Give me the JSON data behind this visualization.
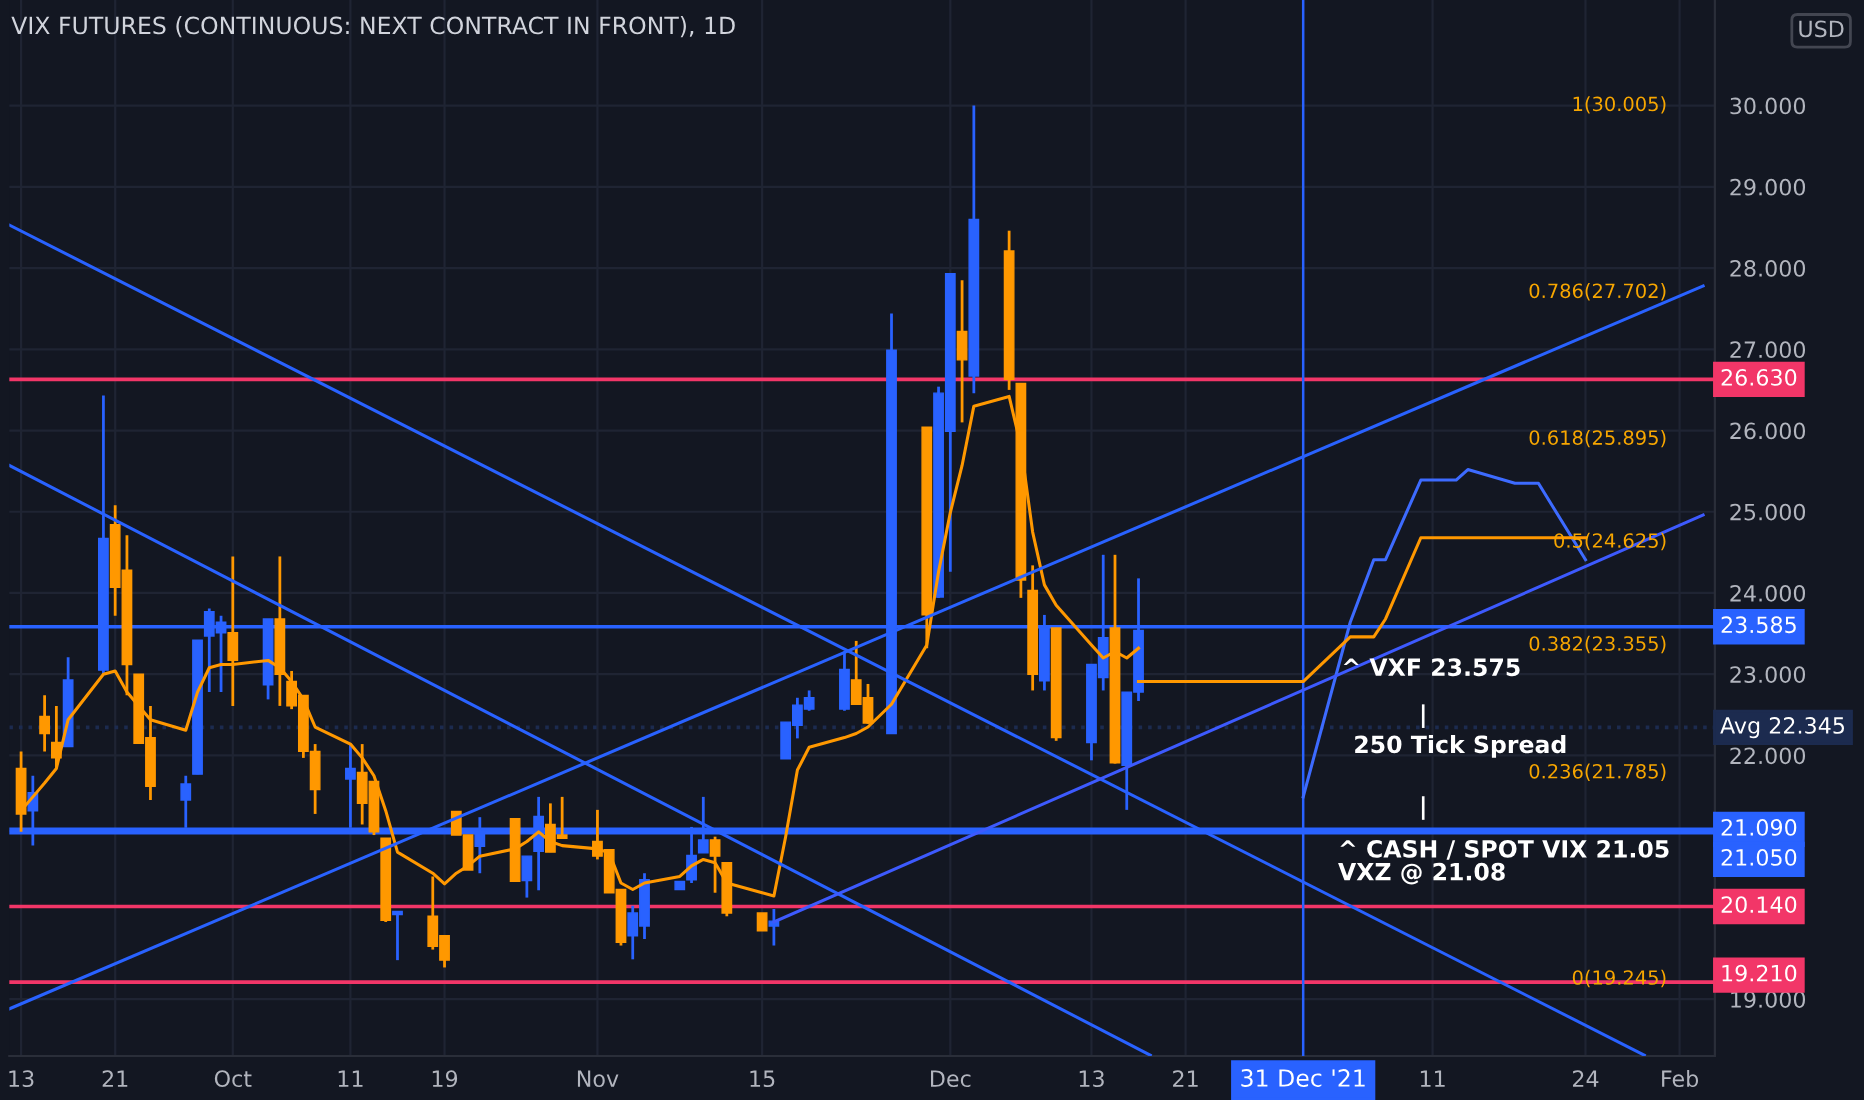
{
  "chart_data": {
    "type": "candlestick",
    "title": "VIX FUTURES (CONTINUOUS: NEXT CONTRACT IN FRONT), 1D",
    "x": [
      "2021-09-13",
      "2021-09-14",
      "2021-09-15",
      "2021-09-16",
      "2021-09-17",
      "2021-09-20",
      "2021-09-21",
      "2021-09-22",
      "2021-09-23",
      "2021-09-24",
      "2021-09-27",
      "2021-09-28",
      "2021-09-29",
      "2021-09-30",
      "2021-10-01",
      "2021-10-04",
      "2021-10-05",
      "2021-10-06",
      "2021-10-07",
      "2021-10-08",
      "2021-10-11",
      "2021-10-12",
      "2021-10-13",
      "2021-10-14",
      "2021-10-15",
      "2021-10-18",
      "2021-10-19",
      "2021-10-20",
      "2021-10-21",
      "2021-10-22",
      "2021-10-25",
      "2021-10-26",
      "2021-10-27",
      "2021-10-28",
      "2021-10-29",
      "2021-11-01",
      "2021-11-02",
      "2021-11-03",
      "2021-11-04",
      "2021-11-05",
      "2021-11-08",
      "2021-11-09",
      "2021-11-10",
      "2021-11-11",
      "2021-11-12",
      "2021-11-15",
      "2021-11-16",
      "2021-11-17",
      "2021-11-18",
      "2021-11-19",
      "2021-11-22",
      "2021-11-23",
      "2021-11-24",
      "2021-11-26",
      "2021-11-29",
      "2021-11-30",
      "2021-12-01",
      "2021-12-02",
      "2021-12-03",
      "2021-12-06",
      "2021-12-07",
      "2021-12-08",
      "2021-12-09",
      "2021-12-10",
      "2021-12-13",
      "2021-12-14",
      "2021-12-15",
      "2021-12-16",
      "2021-12-17"
    ],
    "ohlc": [
      [
        21.84,
        22.05,
        21.06,
        21.28
      ],
      [
        21.32,
        21.75,
        20.89,
        21.54
      ],
      [
        22.48,
        22.74,
        22.05,
        22.27
      ],
      [
        22.16,
        22.61,
        21.84,
        21.97
      ],
      [
        22.11,
        23.21,
        22.11,
        22.93
      ],
      [
        23.05,
        26.43,
        23.0,
        24.67
      ],
      [
        24.84,
        25.08,
        23.72,
        24.07
      ],
      [
        24.28,
        24.71,
        22.74,
        23.12
      ],
      [
        23.0,
        23.0,
        22.14,
        22.15
      ],
      [
        22.22,
        22.61,
        21.45,
        21.62
      ],
      [
        21.45,
        21.75,
        21.11,
        21.65
      ],
      [
        21.77,
        23.42,
        21.77,
        23.42
      ],
      [
        23.47,
        23.81,
        22.78,
        23.77
      ],
      [
        23.51,
        23.72,
        22.78,
        23.64
      ],
      [
        23.51,
        24.45,
        22.61,
        23.17
      ],
      [
        22.87,
        23.68,
        22.69,
        23.68
      ],
      [
        23.68,
        24.45,
        22.61,
        23.0
      ],
      [
        22.91,
        23.04,
        22.57,
        22.61
      ],
      [
        22.74,
        22.74,
        21.97,
        22.05
      ],
      [
        22.05,
        22.14,
        21.28,
        21.58
      ],
      [
        21.71,
        22.14,
        21.11,
        21.84
      ],
      [
        21.79,
        22.14,
        21.15,
        21.41
      ],
      [
        21.68,
        21.68,
        21.02,
        21.06
      ],
      [
        20.98,
        20.98,
        19.95,
        19.97
      ],
      [
        20.04,
        20.08,
        19.48,
        20.08
      ],
      [
        20.02,
        20.51,
        19.61,
        19.65
      ],
      [
        19.78,
        19.78,
        19.39,
        19.48
      ],
      [
        21.31,
        21.31,
        21.02,
        21.02
      ],
      [
        21.02,
        21.02,
        20.59,
        20.59
      ],
      [
        20.88,
        21.24,
        20.55,
        21.06
      ],
      [
        21.22,
        21.22,
        20.45,
        20.45
      ],
      [
        20.46,
        20.76,
        20.25,
        20.76
      ],
      [
        20.82,
        21.49,
        20.34,
        21.25
      ],
      [
        21.15,
        21.41,
        20.81,
        20.81
      ],
      [
        21.02,
        21.49,
        20.98,
        20.98
      ],
      [
        20.94,
        21.33,
        20.72,
        20.76
      ],
      [
        20.84,
        20.84,
        20.31,
        20.31
      ],
      [
        20.35,
        20.35,
        19.66,
        19.7
      ],
      [
        19.78,
        20.15,
        19.49,
        20.06
      ],
      [
        19.9,
        20.55,
        19.74,
        20.47
      ],
      [
        20.35,
        20.45,
        20.35,
        20.45
      ],
      [
        20.47,
        21.12,
        20.43,
        20.77
      ],
      [
        20.8,
        21.49,
        20.8,
        20.96
      ],
      [
        20.96,
        21.0,
        20.31,
        20.76
      ],
      [
        20.68,
        20.68,
        20.02,
        20.06
      ],
      [
        20.06,
        20.06,
        19.84,
        19.84
      ],
      [
        19.9,
        20.11,
        19.66,
        19.96
      ],
      [
        21.96,
        22.41,
        21.96,
        22.41
      ],
      [
        22.37,
        22.71,
        22.21,
        22.62
      ],
      [
        22.57,
        22.8,
        22.55,
        22.71
      ],
      [
        22.57,
        23.28,
        22.55,
        23.06
      ],
      [
        22.93,
        23.41,
        22.63,
        22.63
      ],
      [
        22.71,
        22.88,
        22.39,
        22.4
      ],
      [
        22.27,
        27.44,
        22.27,
        26.99
      ],
      [
        26.04,
        26.04,
        23.32,
        23.73
      ],
      [
        23.95,
        26.54,
        23.94,
        26.46
      ],
      [
        25.99,
        27.93,
        24.26,
        27.93
      ],
      [
        27.22,
        27.85,
        26.1,
        26.87
      ],
      [
        26.67,
        30.0,
        26.46,
        28.6
      ],
      [
        28.21,
        28.46,
        26.5,
        26.63
      ],
      [
        26.58,
        26.58,
        23.94,
        24.16
      ],
      [
        24.03,
        24.34,
        22.8,
        23.0
      ],
      [
        22.92,
        23.73,
        22.8,
        23.57
      ],
      [
        23.57,
        23.57,
        22.18,
        22.22
      ],
      [
        22.16,
        23.12,
        21.94,
        23.12
      ],
      [
        22.96,
        24.47,
        22.8,
        23.45
      ],
      [
        23.57,
        24.47,
        21.9,
        21.91
      ],
      [
        21.88,
        22.78,
        21.33,
        22.78
      ],
      [
        22.78,
        24.18,
        22.67,
        23.54
      ]
    ],
    "colors": [
      "#ff9800",
      "#2962ff",
      "#ff9800",
      "#ff9800",
      "#2962ff",
      "#2962ff",
      "#ff9800",
      "#ff9800",
      "#ff9800",
      "#ff9800",
      "#2962ff",
      "#2962ff",
      "#2962ff",
      "#2962ff",
      "#ff9800",
      "#2962ff",
      "#ff9800",
      "#ff9800",
      "#ff9800",
      "#ff9800",
      "#2962ff",
      "#ff9800",
      "#ff9800",
      "#ff9800",
      "#2962ff",
      "#ff9800",
      "#ff9800",
      "#ff9800",
      "#ff9800",
      "#2962ff",
      "#ff9800",
      "#2962ff",
      "#2962ff",
      "#ff9800",
      "#ff9800",
      "#ff9800",
      "#ff9800",
      "#ff9800",
      "#2962ff",
      "#2962ff",
      "#2962ff",
      "#2962ff",
      "#2962ff",
      "#ff9800",
      "#ff9800",
      "#ff9800",
      "#2962ff",
      "#2962ff",
      "#2962ff",
      "#2962ff",
      "#2962ff",
      "#ff9800",
      "#ff9800",
      "#2962ff",
      "#ff9800",
      "#2962ff",
      "#2962ff",
      "#ff9800",
      "#2962ff",
      "#ff9800",
      "#ff9800",
      "#ff9800",
      "#2962ff",
      "#ff9800",
      "#2962ff",
      "#2962ff",
      "#ff9800",
      "#2962ff",
      "#2962ff"
    ],
    "series": [
      {
        "type": "line",
        "color": "#ff9800",
        "x": [
          "2021-09-13",
          "2021-09-14",
          "2021-09-15",
          "2021-09-16",
          "2021-09-17",
          "2021-09-20",
          "2021-09-21",
          "2021-09-22",
          "2021-09-23",
          "2021-09-24",
          "2021-09-27",
          "2021-09-28",
          "2021-09-29",
          "2021-09-30",
          "2021-10-01",
          "2021-10-04",
          "2021-10-05",
          "2021-10-06",
          "2021-10-07",
          "2021-10-08",
          "2021-10-11",
          "2021-10-12",
          "2021-10-13",
          "2021-10-14",
          "2021-10-15",
          "2021-10-18",
          "2021-10-19",
          "2021-10-20",
          "2021-10-21",
          "2021-10-22",
          "2021-10-25",
          "2021-10-26",
          "2021-10-27",
          "2021-10-28",
          "2021-10-29",
          "2021-11-01",
          "2021-11-02",
          "2021-11-03",
          "2021-11-04",
          "2021-11-05",
          "2021-11-08",
          "2021-11-09",
          "2021-11-10",
          "2021-11-11",
          "2021-11-12",
          "2021-11-15",
          "2021-11-16",
          "2021-11-17",
          "2021-11-18",
          "2021-11-19",
          "2021-11-22",
          "2021-11-23",
          "2021-11-24",
          "2021-11-26",
          "2021-11-29",
          "2021-11-30",
          "2021-12-01",
          "2021-12-02",
          "2021-12-03",
          "2021-12-06",
          "2021-12-07",
          "2021-12-08",
          "2021-12-09",
          "2021-12-10",
          "2021-12-13",
          "2021-12-14",
          "2021-12-15",
          "2021-12-16",
          "2021-12-17"
        ],
        "values": [
          21.32,
          21.49,
          21.66,
          21.84,
          22.44,
          23.0,
          23.04,
          22.78,
          22.61,
          22.44,
          22.31,
          22.78,
          23.08,
          23.12,
          23.12,
          23.17,
          23.08,
          22.91,
          22.69,
          22.35,
          22.14,
          21.97,
          21.75,
          21.32,
          20.81,
          20.55,
          20.42,
          20.55,
          20.64,
          20.76,
          20.85,
          20.94,
          21.06,
          20.94,
          20.89,
          20.85,
          20.8,
          20.43,
          20.35,
          20.43,
          20.51,
          20.64,
          20.72,
          20.68,
          20.43,
          20.31,
          20.27,
          21.0,
          21.82,
          22.1,
          22.22,
          22.27,
          22.35,
          22.63,
          23.36,
          24.26,
          24.99,
          25.57,
          26.3,
          26.42,
          25.81,
          24.75,
          24.1,
          23.85,
          23.36,
          23.2,
          23.28,
          23.2,
          23.32
        ]
      },
      {
        "type": "line",
        "color": "#3d6bff",
        "x": [
          "2021-12-31",
          "2022-01-04",
          "2022-01-06",
          "2022-01-07",
          "2022-01-10",
          "2022-01-13",
          "2022-01-14",
          "2022-01-18",
          "2022-01-20",
          "2022-01-24"
        ],
        "values": [
          21.49,
          23.64,
          24.41,
          24.41,
          25.39,
          25.39,
          25.52,
          25.35,
          25.35,
          24.41
        ]
      },
      {
        "type": "line",
        "color": "#ff9800",
        "x": [
          "2021-12-17",
          "2021-12-31",
          "2022-01-04",
          "2022-01-06",
          "2022-01-07",
          "2022-01-10",
          "2022-01-24"
        ],
        "values": [
          22.91,
          22.91,
          23.46,
          23.46,
          23.68,
          24.68,
          24.68
        ]
      },
      {
        "type": "line",
        "color": "#2962ff",
        "x": [
          "2021-09-12",
          "2022-01-29"
        ],
        "values": [
          28.53,
          18.31
        ]
      },
      {
        "type": "line",
        "color": "#2962ff",
        "x": [
          "2021-09-12",
          "2021-12-18"
        ],
        "values": [
          25.57,
          18.31
        ]
      },
      {
        "type": "line",
        "color": "#2962ff",
        "x": [
          "2021-09-12",
          "2022-02-03"
        ],
        "values": [
          18.88,
          27.78
        ]
      },
      {
        "type": "line",
        "color": "#3d5afe",
        "x": [
          "2021-11-16",
          "2022-02-03"
        ],
        "values": [
          19.95,
          24.96
        ]
      }
    ],
    "xlim": [
      "2021-09-12",
      "2022-02-04"
    ],
    "xticks": [
      {
        "value": "2021-09-13",
        "label": "13"
      },
      {
        "value": "2021-09-21",
        "label": "21"
      },
      {
        "value": "2021-10-01",
        "label": "Oct"
      },
      {
        "value": "2021-10-11",
        "label": "11"
      },
      {
        "value": "2021-10-19",
        "label": "19"
      },
      {
        "value": "2021-11-01",
        "label": "Nov"
      },
      {
        "value": "2021-11-15",
        "label": "15"
      },
      {
        "value": "2021-12-01",
        "label": "Dec"
      },
      {
        "value": "2021-12-13",
        "label": "13"
      },
      {
        "value": "2021-12-21",
        "label": "21"
      },
      {
        "value": "2022-01-11",
        "label": "11"
      },
      {
        "value": "2022-01-24",
        "label": "24"
      },
      {
        "value": "2022-02-01",
        "label": "Feb"
      }
    ],
    "ylim": [
      18.3,
      31.3
    ],
    "yticks": [
      {
        "value": 19,
        "label": "19.000"
      },
      {
        "value": 22,
        "label": "22.000"
      },
      {
        "value": 23,
        "label": "23.000"
      },
      {
        "value": 24,
        "label": "24.000"
      },
      {
        "value": 25,
        "label": "25.000"
      },
      {
        "value": 26,
        "label": "26.000"
      },
      {
        "value": 27,
        "label": "27.000"
      },
      {
        "value": 28,
        "label": "28.000"
      },
      {
        "value": 29,
        "label": "29.000"
      },
      {
        "value": 30,
        "label": "30.000"
      }
    ],
    "grid": true,
    "ref_lines": [
      {
        "axis": "y",
        "value": 26.63,
        "label": "26.630",
        "color": "#f23668"
      },
      {
        "axis": "y",
        "value": 23.585,
        "label": "23.585",
        "color": "#2962ff"
      },
      {
        "axis": "y",
        "value": 22.345,
        "label": "Avg 22.345",
        "color": "#1c2b4f",
        "line_style": "dotted"
      },
      {
        "axis": "y",
        "value": 21.09,
        "label": "21.090",
        "color": "#2962ff"
      },
      {
        "axis": "y",
        "value": 21.05,
        "label": "21.050",
        "color": "#2962ff"
      },
      {
        "axis": "y",
        "value": 20.14,
        "label": "20.140",
        "color": "#f23668"
      },
      {
        "axis": "y",
        "value": 19.21,
        "label": "19.210",
        "color": "#f23668"
      },
      {
        "axis": "x",
        "value": "2021-12-31",
        "label": "31 Dec '21",
        "color": "#2962ff"
      }
    ],
    "annotations": [
      "USD",
      "^ VXF 23.575",
      "|",
      "250 Tick Spread",
      "|",
      "^ CASH / SPOT VIX 21.05\nVXZ @ 21.08",
      "1(30.005)",
      "0.786(27.702)",
      "0.618(25.895)",
      "0.5(24.625)",
      "0.382(23.355)",
      "0.236(21.785)",
      "0(19.245)"
    ]
  }
}
